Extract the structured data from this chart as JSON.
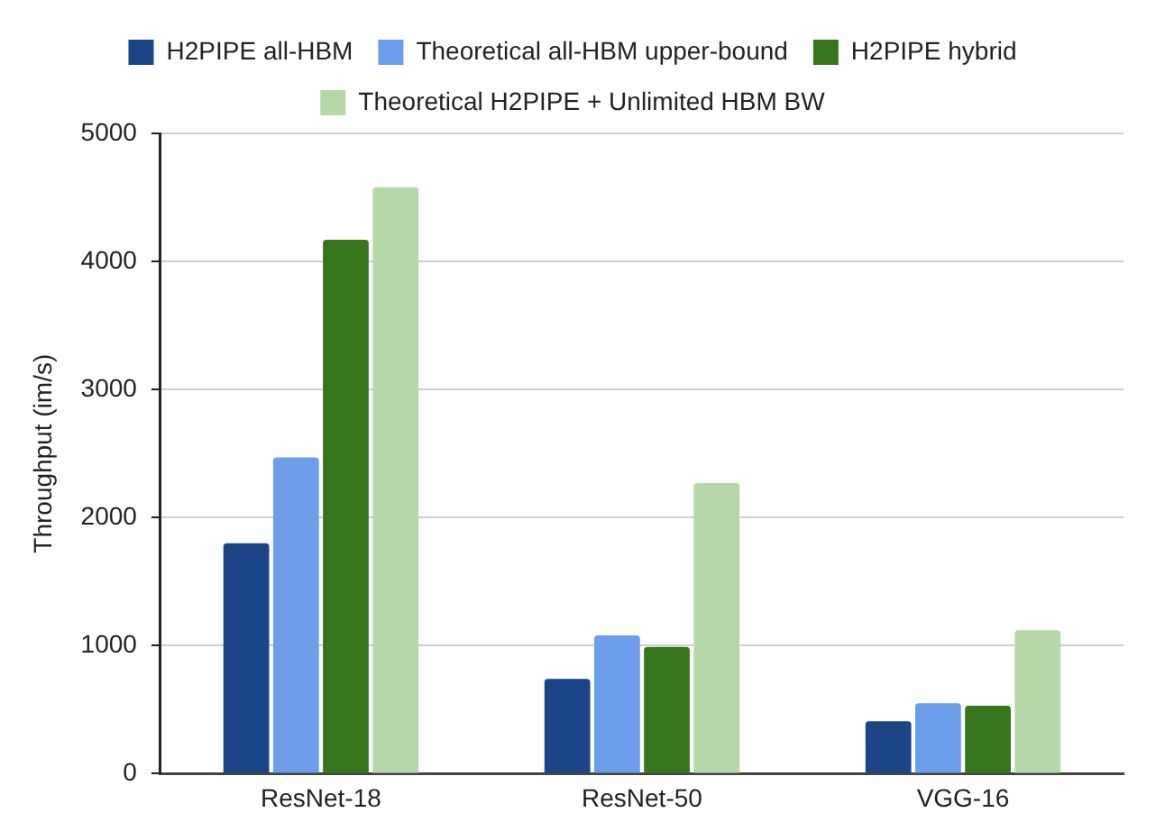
{
  "chart_data": {
    "type": "bar",
    "ylabel": "Throughput (im/s)",
    "categories": [
      "ResNet-18",
      "ResNet-50",
      "VGG-16"
    ],
    "series": [
      {
        "name": "H2PIPE all-HBM",
        "color": "#1c4587",
        "values": [
          1800,
          740,
          410
        ]
      },
      {
        "name": "Theoretical all-HBM upper-bound",
        "color": "#6d9eeb",
        "values": [
          2470,
          1080,
          550
        ]
      },
      {
        "name": "H2PIPE hybrid",
        "color": "#38761d",
        "values": [
          4170,
          990,
          530
        ]
      },
      {
        "name": "Theoretical H2PIPE + Unlimited HBM BW",
        "color": "#b6d7a8",
        "values": [
          4580,
          2270,
          1120
        ]
      }
    ],
    "ylim": [
      0,
      5000
    ],
    "yticks": [
      0,
      1000,
      2000,
      3000,
      4000,
      5000
    ],
    "grid": "y",
    "legend": "top"
  }
}
